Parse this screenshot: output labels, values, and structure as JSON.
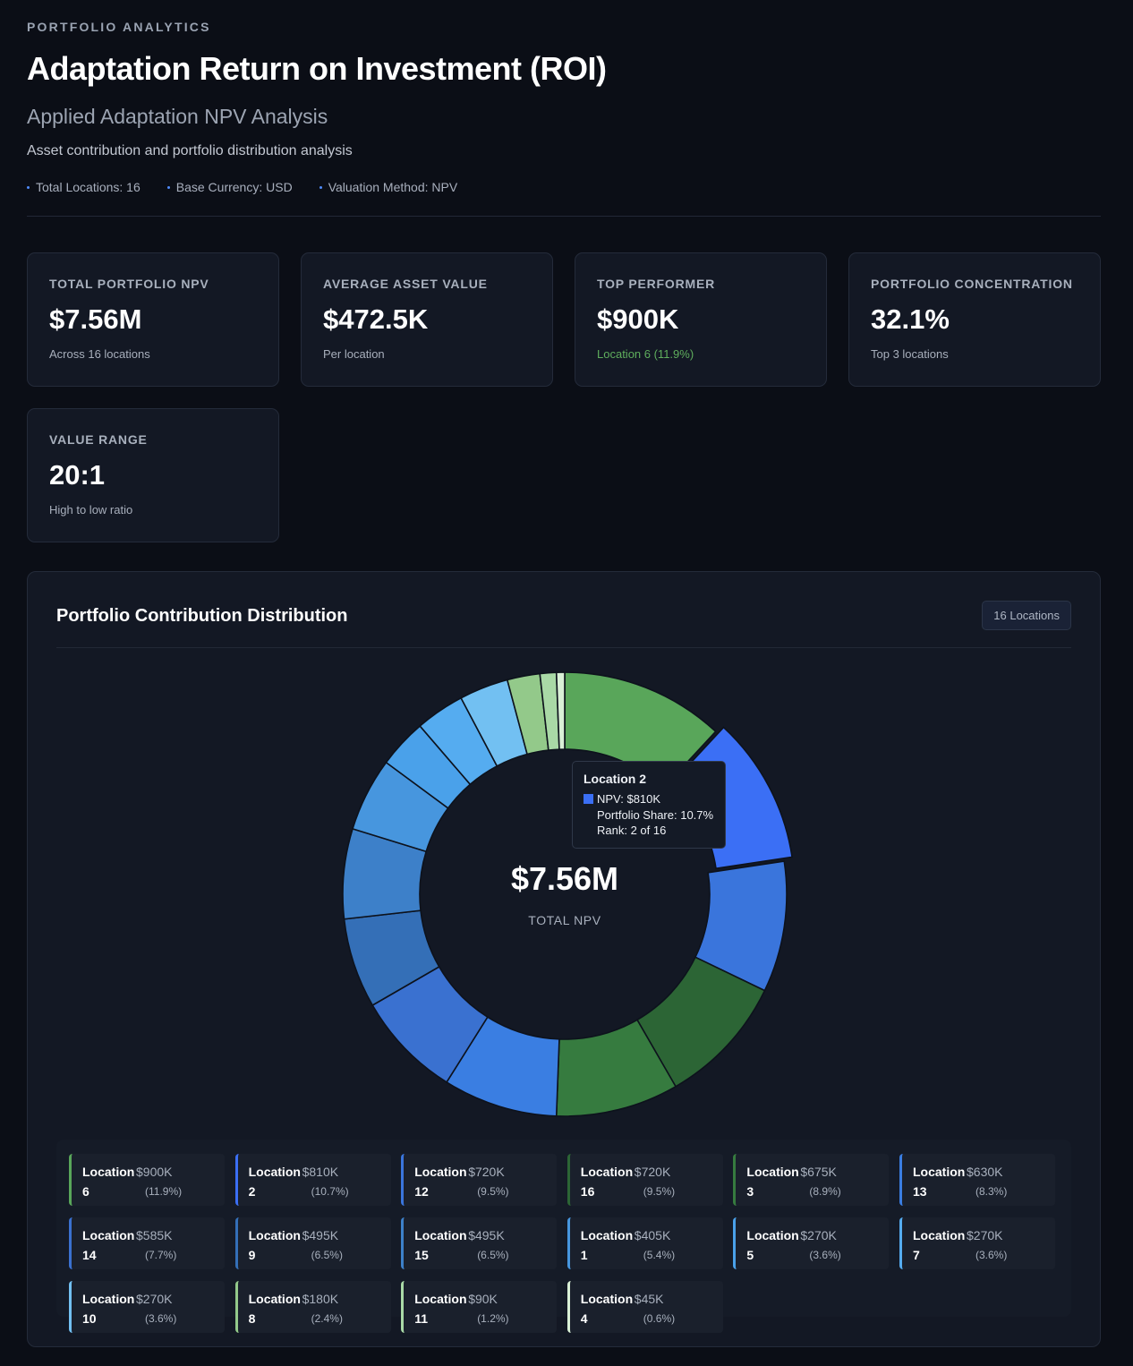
{
  "header": {
    "eyebrow": "PORTFOLIO ANALYTICS",
    "title": "Adaptation Return on Investment (ROI)",
    "subtitle": "Applied Adaptation NPV Analysis",
    "description": "Asset contribution and portfolio distribution analysis",
    "meta": [
      "Total Locations: 16",
      "Base Currency: USD",
      "Valuation Method: NPV"
    ]
  },
  "cards": [
    {
      "label": "TOTAL PORTFOLIO NPV",
      "value": "$7.56M",
      "sub": "Across 16 locations"
    },
    {
      "label": "AVERAGE ASSET VALUE",
      "value": "$472.5K",
      "sub": "Per location"
    },
    {
      "label": "TOP PERFORMER",
      "value": "$900K",
      "sub": "Location 6 (11.9%)"
    },
    {
      "label": "PORTFOLIO CONCENTRATION",
      "value": "32.1%",
      "sub": "Top 3 locations"
    },
    {
      "label": "VALUE RANGE",
      "value": "20:1",
      "sub": "High to low ratio"
    }
  ],
  "panel": {
    "title": "Portfolio Contribution Distribution",
    "badge": "16 Locations",
    "center_value": "$7.56M",
    "center_label": "TOTAL NPV"
  },
  "tooltip": {
    "title": "Location 2",
    "npv": "NPV: $810K",
    "share": "Portfolio Share: 10.7%",
    "rank": "Rank: 2 of 16"
  },
  "colors": {
    "background": "#0b0e16",
    "card": "#131824",
    "accent_green": "#5fae5d",
    "highlight_blue": "#3b6ff5"
  },
  "chart_data": {
    "type": "pie",
    "donut": true,
    "total": "$7.56M",
    "categories": [
      "Location 6",
      "Location 2",
      "Location 12",
      "Location 16",
      "Location 3",
      "Location 13",
      "Location 14",
      "Location 9",
      "Location 15",
      "Location 1",
      "Location 5",
      "Location 7",
      "Location 10",
      "Location 8",
      "Location 11",
      "Location 4"
    ],
    "values": [
      900000,
      810000,
      720000,
      720000,
      675000,
      630000,
      585000,
      495000,
      495000,
      405000,
      270000,
      270000,
      270000,
      180000,
      90000,
      45000
    ],
    "slice_colors": [
      "#59a65a",
      "#3b6ff5",
      "#3a75dc",
      "#2c6535",
      "#367b3f",
      "#3a7ee2",
      "#3a71d0",
      "#346fb7",
      "#3d80c9",
      "#4796de",
      "#4aa1ea",
      "#55acf0",
      "#72c0f2",
      "#93c98a",
      "#a9d9a6",
      "#d9f0d6"
    ],
    "highlighted": "Location 2"
  },
  "legend": [
    {
      "name": "Location 6",
      "value": "$900K",
      "pct": "(11.9%)",
      "color": "#59a65a"
    },
    {
      "name": "Location 2",
      "value": "$810K",
      "pct": "(10.7%)",
      "color": "#3b6ff5"
    },
    {
      "name": "Location 12",
      "value": "$720K",
      "pct": "(9.5%)",
      "color": "#3a75dc"
    },
    {
      "name": "Location 16",
      "value": "$720K",
      "pct": "(9.5%)",
      "color": "#2c6535"
    },
    {
      "name": "Location 3",
      "value": "$675K",
      "pct": "(8.9%)",
      "color": "#367b3f"
    },
    {
      "name": "Location 13",
      "value": "$630K",
      "pct": "(8.3%)",
      "color": "#3a7ee2"
    },
    {
      "name": "Location 14",
      "value": "$585K",
      "pct": "(7.7%)",
      "color": "#3a71d0"
    },
    {
      "name": "Location 9",
      "value": "$495K",
      "pct": "(6.5%)",
      "color": "#346fb7"
    },
    {
      "name": "Location 15",
      "value": "$495K",
      "pct": "(6.5%)",
      "color": "#3d80c9"
    },
    {
      "name": "Location 1",
      "value": "$405K",
      "pct": "(5.4%)",
      "color": "#4796de"
    },
    {
      "name": "Location 5",
      "value": "$270K",
      "pct": "(3.6%)",
      "color": "#4aa1ea"
    },
    {
      "name": "Location 7",
      "value": "$270K",
      "pct": "(3.6%)",
      "color": "#55acf0"
    },
    {
      "name": "Location 10",
      "value": "$270K",
      "pct": "(3.6%)",
      "color": "#72c0f2"
    },
    {
      "name": "Location 8",
      "value": "$180K",
      "pct": "(2.4%)",
      "color": "#93c98a"
    },
    {
      "name": "Location 11",
      "value": "$90K",
      "pct": "(1.2%)",
      "color": "#a9d9a6"
    },
    {
      "name": "Location 4",
      "value": "$45K",
      "pct": "(0.6%)",
      "color": "#d9f0d6"
    }
  ]
}
